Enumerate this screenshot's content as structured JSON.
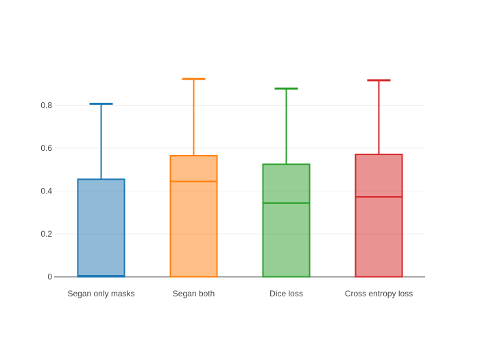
{
  "figure": {
    "background": "#ffffff"
  },
  "chart_data": {
    "type": "box",
    "title": "",
    "xlabel": "",
    "ylabel": "",
    "categories": [
      "Segan only masks",
      "Segan both",
      "Dice loss",
      "Cross entropy loss"
    ],
    "series": [
      {
        "name": "Segan only masks",
        "color": "#1f77b4",
        "min": 0,
        "q1": 0,
        "median": 0.005,
        "q3": 0.455,
        "max": 0.807
      },
      {
        "name": "Segan both",
        "color": "#ff7f0e",
        "min": 0,
        "q1": 0,
        "median": 0.445,
        "q3": 0.565,
        "max": 0.923
      },
      {
        "name": "Dice loss",
        "color": "#2ca02c",
        "min": 0,
        "q1": 0,
        "median": 0.344,
        "q3": 0.525,
        "max": 0.878
      },
      {
        "name": "Cross entropy loss",
        "color": "#d62728",
        "min": 0,
        "q1": 0,
        "median": 0.373,
        "q3": 0.571,
        "max": 0.917
      }
    ],
    "y_axis": {
      "ticks": [
        0,
        0.2,
        0.4,
        0.6,
        0.8
      ],
      "tick_labels": [
        "0",
        "0.2",
        "0.4",
        "0.6",
        "0.8"
      ],
      "range": [
        0,
        0.95
      ]
    },
    "grid": true,
    "legend": false,
    "colors": {
      "grid_line": "#eeeeee",
      "zero_line": "#999999",
      "tick_text": "#444444",
      "category_text": "#444444"
    },
    "fill_opacity": 0.5
  }
}
